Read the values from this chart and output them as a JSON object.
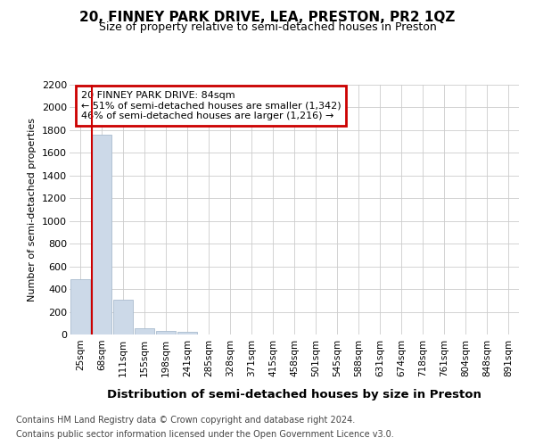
{
  "title": "20, FINNEY PARK DRIVE, LEA, PRESTON, PR2 1QZ",
  "subtitle": "Size of property relative to semi-detached houses in Preston",
  "xlabel": "Distribution of semi-detached houses by size in Preston",
  "ylabel": "Number of semi-detached properties",
  "categories": [
    "25sqm",
    "68sqm",
    "111sqm",
    "155sqm",
    "198sqm",
    "241sqm",
    "285sqm",
    "328sqm",
    "371sqm",
    "415sqm",
    "458sqm",
    "501sqm",
    "545sqm",
    "588sqm",
    "631sqm",
    "674sqm",
    "718sqm",
    "761sqm",
    "804sqm",
    "848sqm",
    "891sqm"
  ],
  "values": [
    490,
    1760,
    305,
    55,
    30,
    20,
    0,
    0,
    0,
    0,
    0,
    0,
    0,
    0,
    0,
    0,
    0,
    0,
    0,
    0,
    0
  ],
  "bar_color": "#ccd9e8",
  "bar_edge_color": "#aabcce",
  "annotation_line1": "20 FINNEY PARK DRIVE: 84sqm",
  "annotation_line2": "← 51% of semi-detached houses are smaller (1,342)",
  "annotation_line3": "46% of semi-detached houses are larger (1,216) →",
  "annotation_box_color": "#ffffff",
  "annotation_box_edge_color": "#cc0000",
  "ylim": [
    0,
    2200
  ],
  "yticks": [
    0,
    200,
    400,
    600,
    800,
    1000,
    1200,
    1400,
    1600,
    1800,
    2000,
    2200
  ],
  "footnote1": "Contains HM Land Registry data © Crown copyright and database right 2024.",
  "footnote2": "Contains public sector information licensed under the Open Government Licence v3.0.",
  "background_color": "#ffffff",
  "grid_color": "#cccccc",
  "red_line_color": "#cc0000"
}
